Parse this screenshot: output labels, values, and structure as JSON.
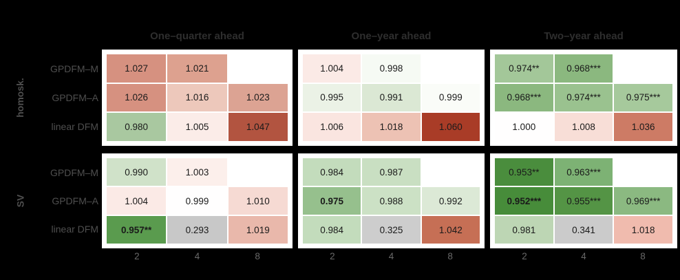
{
  "colors": {
    "background": "#000000",
    "panel": "#ffffff",
    "cell_text": "#1a1a1a",
    "title_text": "#2e2e2e",
    "label_text": "#4f4f4f",
    "tick_text": "#696969",
    "na_cell": "#c8c8c8",
    "diverging_low": "#478c3a",
    "diverging_mid": "#ffffff",
    "diverging_high": "#a93c27"
  },
  "titles": [
    "One–quarter ahead",
    "One–year ahead",
    "Two–year ahead"
  ],
  "row_facets": [
    "homosk.",
    "SV"
  ],
  "row_labels": [
    "GPDFM–M",
    "GPDFM–A",
    "linear DFM"
  ],
  "x_ticks": [
    "2",
    "4",
    "8"
  ],
  "chart_data": {
    "type": "heatmap",
    "x_categories": [
      "2",
      "4",
      "8"
    ],
    "y_categories": [
      "GPDFM–M",
      "GPDFM–A",
      "linear DFM"
    ],
    "col_facets": [
      "One–quarter ahead",
      "One–year ahead",
      "Two–year ahead"
    ],
    "row_facets": [
      "homosk.",
      "SV"
    ],
    "legend": "none",
    "panels": [
      {
        "row_facet": "homosk.",
        "col_facet": "One–quarter ahead",
        "cells": [
          [
            {
              "value": 1.027,
              "label": "1.027",
              "bg": "#d69180",
              "bold": false
            },
            {
              "value": 1.021,
              "label": "1.021",
              "bg": "#dda18f",
              "bold": false
            },
            null
          ],
          [
            {
              "value": 1.026,
              "label": "1.026",
              "bg": "#d69180",
              "bold": false
            },
            {
              "value": 1.016,
              "label": "1.016",
              "bg": "#edc8bb",
              "bold": false
            },
            {
              "value": 1.023,
              "label": "1.023",
              "bg": "#dca393",
              "bold": false
            }
          ],
          [
            {
              "value": 0.98,
              "label": "0.980",
              "bg": "#a9c8a0",
              "bold": false
            },
            {
              "value": 1.005,
              "label": "1.005",
              "bg": "#fbece8",
              "bold": false
            },
            {
              "value": 1.047,
              "label": "1.047",
              "bg": "#b25440",
              "bold": false
            }
          ]
        ]
      },
      {
        "row_facet": "homosk.",
        "col_facet": "One–year ahead",
        "cells": [
          [
            {
              "value": 1.004,
              "label": "1.004",
              "bg": "#fbeae6",
              "bold": false
            },
            {
              "value": 0.998,
              "label": "0.998",
              "bg": "#f6faf4",
              "bold": false
            },
            null
          ],
          [
            {
              "value": 0.995,
              "label": "0.995",
              "bg": "#ebf2e6",
              "bold": false
            },
            {
              "value": 0.991,
              "label": "0.991",
              "bg": "#dbe8d4",
              "bold": false
            },
            {
              "value": 0.999,
              "label": "0.999",
              "bg": "#fafcf8",
              "bold": false
            }
          ],
          [
            {
              "value": 1.006,
              "label": "1.006",
              "bg": "#fae5e0",
              "bold": false
            },
            {
              "value": 1.018,
              "label": "1.018",
              "bg": "#edc2b4",
              "bold": false
            },
            {
              "value": 1.06,
              "label": "1.060",
              "bg": "#a93c27",
              "bold": false
            }
          ]
        ]
      },
      {
        "row_facet": "homosk.",
        "col_facet": "Two–year ahead",
        "cells": [
          [
            {
              "value": 0.974,
              "label": "0.974**",
              "bg": "#a3c799",
              "bold": false
            },
            {
              "value": 0.968,
              "label": "0.968***",
              "bg": "#8bb87f",
              "bold": false
            },
            null
          ],
          [
            {
              "value": 0.968,
              "label": "0.968***",
              "bg": "#8bb87f",
              "bold": false
            },
            {
              "value": 0.974,
              "label": "0.974***",
              "bg": "#9ac28f",
              "bold": false
            },
            {
              "value": 0.975,
              "label": "0.975***",
              "bg": "#a6c99c",
              "bold": false
            }
          ],
          [
            {
              "value": 1.0,
              "label": "1.000",
              "bg": "#fffefe",
              "bold": false
            },
            {
              "value": 1.008,
              "label": "1.008",
              "bg": "#f8ded7",
              "bold": false
            },
            {
              "value": 1.036,
              "label": "1.036",
              "bg": "#cd7b65",
              "bold": false
            }
          ]
        ]
      },
      {
        "row_facet": "SV",
        "col_facet": "One–quarter ahead",
        "cells": [
          [
            {
              "value": 0.99,
              "label": "0.990",
              "bg": "#d0e2c9",
              "bold": false
            },
            {
              "value": 1.003,
              "label": "1.003",
              "bg": "#fcefeb",
              "bold": false
            },
            null
          ],
          [
            {
              "value": 1.004,
              "label": "1.004",
              "bg": "#fbeae6",
              "bold": false
            },
            {
              "value": 0.999,
              "label": "0.999",
              "bg": "#fffefe",
              "bold": false
            },
            {
              "value": 1.01,
              "label": "1.010",
              "bg": "#f6dad3",
              "bold": false
            }
          ],
          [
            {
              "value": 0.957,
              "label": "0.957**",
              "bg": "#5a9b4e",
              "bold": true
            },
            {
              "value": 0.293,
              "label": "0.293",
              "bg": "#c8c8c8",
              "bold": false
            },
            {
              "value": 1.019,
              "label": "1.019",
              "bg": "#e9b8ab",
              "bold": false
            }
          ]
        ]
      },
      {
        "row_facet": "SV",
        "col_facet": "One–year ahead",
        "cells": [
          [
            {
              "value": 0.984,
              "label": "0.984",
              "bg": "#c3dcbc",
              "bold": false
            },
            {
              "value": 0.987,
              "label": "0.987",
              "bg": "#c9dfc2",
              "bold": false
            },
            null
          ],
          [
            {
              "value": 0.975,
              "label": "0.975",
              "bg": "#96c08d",
              "bold": true
            },
            {
              "value": 0.988,
              "label": "0.988",
              "bg": "#cce1c5",
              "bold": false
            },
            {
              "value": 0.992,
              "label": "0.992",
              "bg": "#dce9d6",
              "bold": false
            }
          ],
          [
            {
              "value": 0.984,
              "label": "0.984",
              "bg": "#c3dcbc",
              "bold": false
            },
            {
              "value": 0.325,
              "label": "0.325",
              "bg": "#cdcdcd",
              "bold": false
            },
            {
              "value": 1.042,
              "label": "1.042",
              "bg": "#c66f55",
              "bold": false
            }
          ]
        ]
      },
      {
        "row_facet": "SV",
        "col_facet": "Two–year ahead",
        "cells": [
          [
            {
              "value": 0.953,
              "label": "0.953**",
              "bg": "#4a8d3d",
              "bold": false
            },
            {
              "value": 0.963,
              "label": "0.963***",
              "bg": "#7db274",
              "bold": false
            },
            null
          ],
          [
            {
              "value": 0.952,
              "label": "0.952***",
              "bg": "#478c3a",
              "bold": true
            },
            {
              "value": 0.955,
              "label": "0.955***",
              "bg": "#549445",
              "bold": false
            },
            {
              "value": 0.969,
              "label": "0.969***",
              "bg": "#8bb981",
              "bold": false
            }
          ],
          [
            {
              "value": 0.981,
              "label": "0.981",
              "bg": "#bdd6b4",
              "bold": false
            },
            {
              "value": 0.341,
              "label": "0.341",
              "bg": "#cbcbcb",
              "bold": false
            },
            {
              "value": 1.018,
              "label": "1.018",
              "bg": "#f0bbae",
              "bold": false
            }
          ]
        ]
      }
    ]
  }
}
